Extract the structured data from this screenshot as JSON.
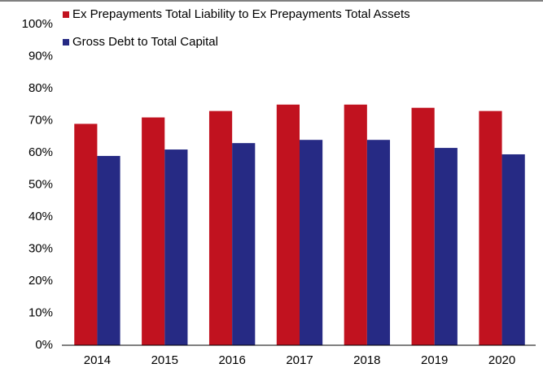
{
  "chart_data": {
    "type": "bar",
    "categories": [
      "2014",
      "2015",
      "2016",
      "2017",
      "2018",
      "2019",
      "2020"
    ],
    "series": [
      {
        "name": "Ex Prepayments Total Liability to Ex Prepayments Total Assets",
        "color": "#c1121f",
        "values": [
          69,
          71,
          73,
          75,
          75,
          74,
          73
        ]
      },
      {
        "name": "Gross Debt to Total Capital",
        "color": "#262a84",
        "values": [
          59,
          61,
          63,
          64,
          64,
          61.5,
          59.5
        ]
      }
    ],
    "ylim": [
      0,
      100
    ],
    "yticks": [
      {
        "value": 0,
        "label": "0%"
      },
      {
        "value": 10,
        "label": "10%"
      },
      {
        "value": 20,
        "label": "20%"
      },
      {
        "value": 30,
        "label": "30%"
      },
      {
        "value": 40,
        "label": "40%"
      },
      {
        "value": 50,
        "label": "50%"
      },
      {
        "value": 60,
        "label": "60%"
      },
      {
        "value": 70,
        "label": "70%"
      },
      {
        "value": 80,
        "label": "80%"
      },
      {
        "value": 90,
        "label": "90%"
      },
      {
        "value": 100,
        "label": "100%"
      }
    ]
  }
}
